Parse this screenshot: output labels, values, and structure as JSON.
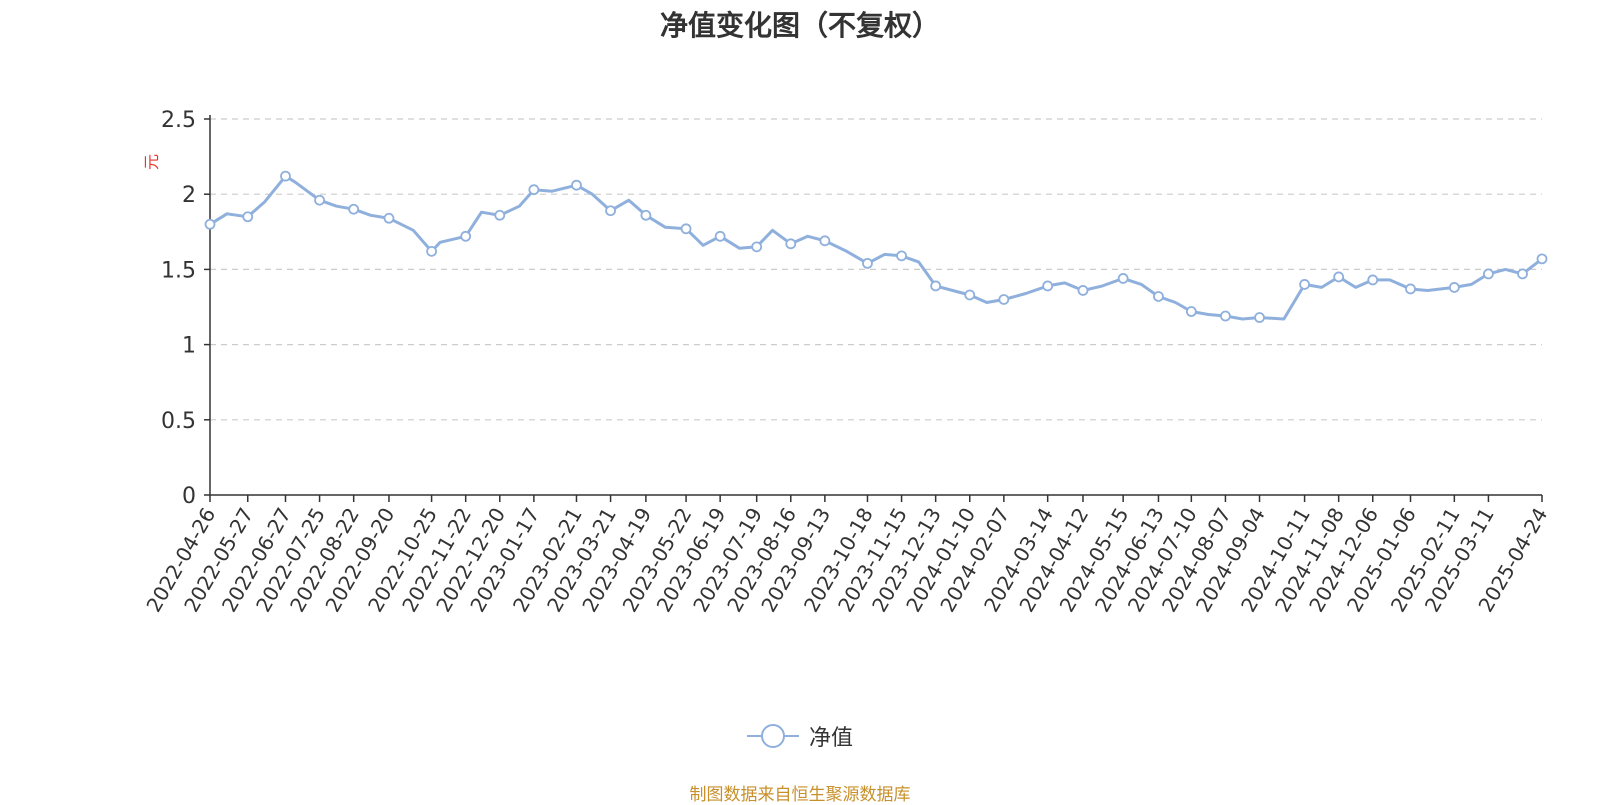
{
  "chart_data": {
    "type": "line",
    "title": "净值变化图（不复权）",
    "ylabel": "元",
    "ylim": [
      0,
      2.5
    ],
    "yticks": [
      "0",
      "0.5",
      "1",
      "1.5",
      "2",
      "2.5"
    ],
    "grid": true,
    "legend_position": "bottom-center",
    "colors": {
      "line": "#8fb0dc",
      "ylabel": "#e8332d",
      "source": "#c8902b"
    },
    "x_tick_labels": [
      "2022-04-26",
      "2022-05-27",
      "2022-06-27",
      "2022-07-25",
      "2022-08-22",
      "2022-09-20",
      "2022-10-25",
      "2022-11-22",
      "2022-12-20",
      "2023-01-17",
      "2023-02-21",
      "2023-03-21",
      "2023-04-19",
      "2023-05-22",
      "2023-06-19",
      "2023-07-19",
      "2023-08-16",
      "2023-09-13",
      "2023-10-18",
      "2023-11-15",
      "2023-12-13",
      "2024-01-10",
      "2024-02-07",
      "2024-03-14",
      "2024-04-12",
      "2024-05-15",
      "2024-06-13",
      "2024-07-10",
      "2024-08-07",
      "2024-09-04",
      "2024-10-11",
      "2024-11-08",
      "2024-12-06",
      "2025-01-06",
      "2025-02-11",
      "2025-03-11",
      "2025-04-24"
    ],
    "series": [
      {
        "name": "净值",
        "x": [
          "2022-04-26",
          "2022-05-10",
          "2022-05-27",
          "2022-06-10",
          "2022-06-27",
          "2022-07-05",
          "2022-07-25",
          "2022-08-08",
          "2022-08-22",
          "2022-09-05",
          "2022-09-20",
          "2022-10-10",
          "2022-10-25",
          "2022-11-01",
          "2022-11-22",
          "2022-12-05",
          "2022-12-20",
          "2023-01-05",
          "2023-01-17",
          "2023-02-01",
          "2023-02-21",
          "2023-03-06",
          "2023-03-21",
          "2023-04-05",
          "2023-04-19",
          "2023-05-05",
          "2023-05-22",
          "2023-06-05",
          "2023-06-19",
          "2023-07-05",
          "2023-07-19",
          "2023-08-01",
          "2023-08-16",
          "2023-08-30",
          "2023-09-13",
          "2023-10-01",
          "2023-10-18",
          "2023-11-01",
          "2023-11-15",
          "2023-11-29",
          "2023-12-13",
          "2023-12-27",
          "2024-01-10",
          "2024-01-24",
          "2024-02-07",
          "2024-02-25",
          "2024-03-14",
          "2024-03-28",
          "2024-04-12",
          "2024-04-28",
          "2024-05-15",
          "2024-05-30",
          "2024-06-13",
          "2024-06-27",
          "2024-07-10",
          "2024-07-24",
          "2024-08-07",
          "2024-08-21",
          "2024-09-04",
          "2024-09-24",
          "2024-10-11",
          "2024-10-25",
          "2024-11-08",
          "2024-11-22",
          "2024-12-06",
          "2024-12-20",
          "2025-01-06",
          "2025-01-20",
          "2025-02-11",
          "2025-02-25",
          "2025-03-11",
          "2025-03-25",
          "2025-04-08",
          "2025-04-24"
        ],
        "values": [
          1.8,
          1.87,
          1.85,
          1.95,
          2.12,
          2.08,
          1.96,
          1.92,
          1.9,
          1.86,
          1.84,
          1.76,
          1.62,
          1.68,
          1.72,
          1.88,
          1.86,
          1.92,
          2.03,
          2.02,
          2.06,
          2.0,
          1.89,
          1.96,
          1.86,
          1.78,
          1.77,
          1.66,
          1.72,
          1.64,
          1.65,
          1.76,
          1.67,
          1.72,
          1.69,
          1.62,
          1.54,
          1.6,
          1.59,
          1.55,
          1.39,
          1.36,
          1.33,
          1.28,
          1.3,
          1.34,
          1.39,
          1.41,
          1.36,
          1.39,
          1.44,
          1.4,
          1.32,
          1.28,
          1.22,
          1.2,
          1.19,
          1.17,
          1.18,
          1.17,
          1.4,
          1.38,
          1.45,
          1.38,
          1.43,
          1.43,
          1.37,
          1.36,
          1.38,
          1.4,
          1.47,
          1.5,
          1.47,
          1.57
        ]
      }
    ]
  },
  "legend": {
    "label": "净值"
  },
  "footer": {
    "source": "制图数据来自恒生聚源数据库"
  }
}
